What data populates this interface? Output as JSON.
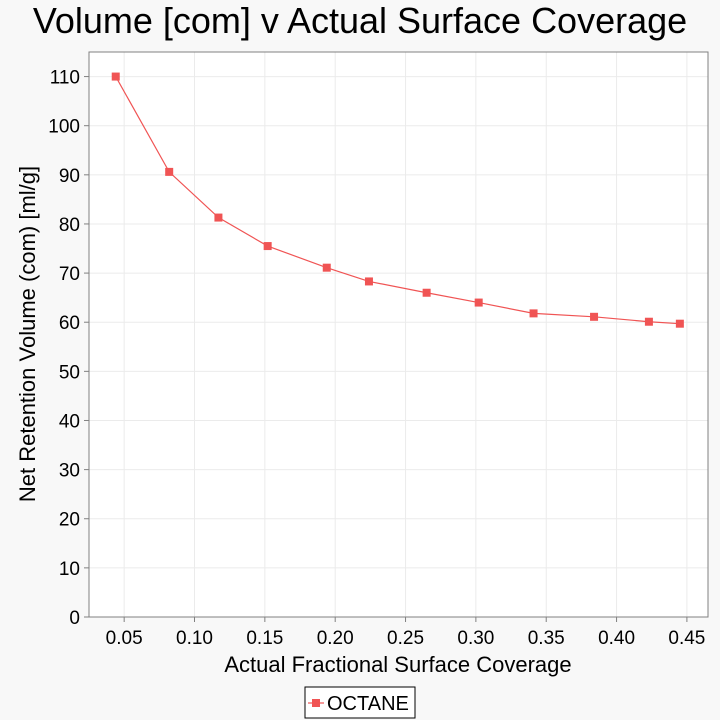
{
  "chart_data": {
    "type": "line",
    "title": "Volume [com] v Actual Surface Coverage",
    "xlabel": "Actual Fractional Surface Coverage",
    "ylabel": "Net Retention Volume (com) [ml/g]",
    "xlim": [
      0.025,
      0.465
    ],
    "ylim": [
      0,
      115
    ],
    "xticks": [
      "0.05",
      "0.10",
      "0.15",
      "0.20",
      "0.25",
      "0.30",
      "0.35",
      "0.40",
      "0.45"
    ],
    "yticks": [
      "0",
      "10",
      "20",
      "30",
      "40",
      "50",
      "60",
      "70",
      "80",
      "90",
      "100",
      "110"
    ],
    "grid": true,
    "legend_position": "bottom-center",
    "series": [
      {
        "name": "OCTANE",
        "color": "#f05454",
        "marker": "square",
        "x": [
          0.044,
          0.082,
          0.117,
          0.152,
          0.194,
          0.224,
          0.265,
          0.302,
          0.341,
          0.384,
          0.423,
          0.445
        ],
        "y": [
          110.0,
          90.6,
          81.3,
          75.5,
          71.1,
          68.3,
          66.0,
          64.0,
          61.8,
          61.1,
          60.1,
          59.7
        ]
      }
    ]
  }
}
